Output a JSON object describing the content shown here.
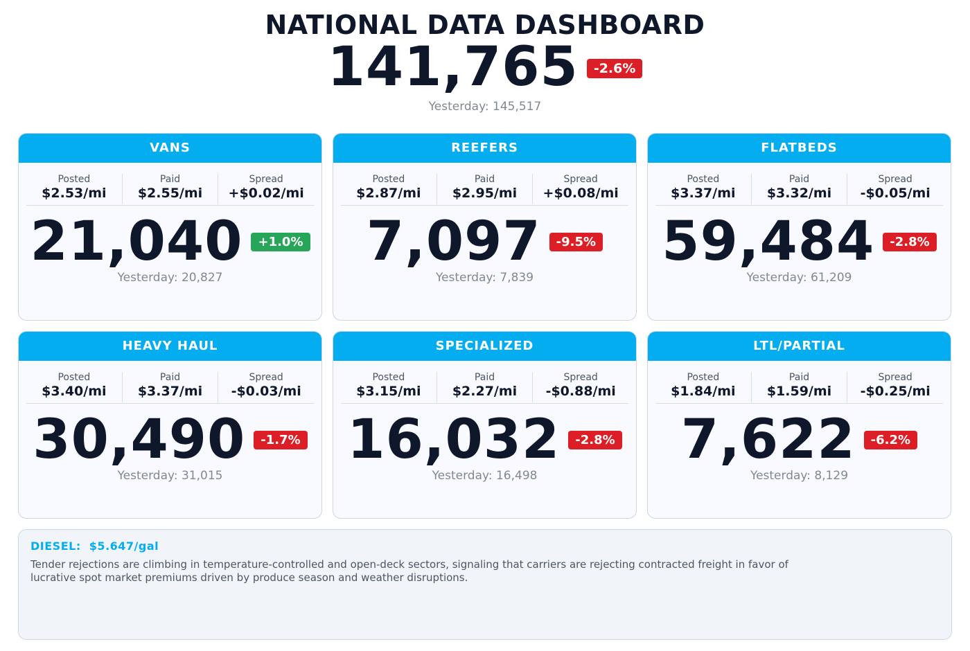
{
  "header": {
    "title": "NATIONAL DATA DASHBOARD",
    "total": "141,765",
    "change": "-2.6%",
    "change_direction": "down",
    "yesterday": "Yesterday: 145,517"
  },
  "colors": {
    "accent": "#03adef",
    "down": "#dc1f26",
    "up": "#27a558",
    "text": "#0f172a",
    "muted": "#808892"
  },
  "cards": [
    {
      "title": "VANS",
      "posted_label": "Posted",
      "posted": "$2.53/mi",
      "paid_label": "Paid",
      "paid": "$2.55/mi",
      "spread_label": "Spread",
      "spread": "+$0.02/mi",
      "count": "21,040",
      "change": "+1.0%",
      "change_direction": "up",
      "yesterday": "Yesterday: 20,827"
    },
    {
      "title": "REEFERS",
      "posted_label": "Posted",
      "posted": "$2.87/mi",
      "paid_label": "Paid",
      "paid": "$2.95/mi",
      "spread_label": "Spread",
      "spread": "+$0.08/mi",
      "count": "7,097",
      "change": "-9.5%",
      "change_direction": "down",
      "yesterday": "Yesterday: 7,839"
    },
    {
      "title": "FLATBEDS",
      "posted_label": "Posted",
      "posted": "$3.37/mi",
      "paid_label": "Paid",
      "paid": "$3.32/mi",
      "spread_label": "Spread",
      "spread": "-$0.05/mi",
      "count": "59,484",
      "change": "-2.8%",
      "change_direction": "down",
      "yesterday": "Yesterday: 61,209"
    },
    {
      "title": "HEAVY HAUL",
      "posted_label": "Posted",
      "posted": "$3.40/mi",
      "paid_label": "Paid",
      "paid": "$3.37/mi",
      "spread_label": "Spread",
      "spread": "-$0.03/mi",
      "count": "30,490",
      "change": "-1.7%",
      "change_direction": "down",
      "yesterday": "Yesterday: 31,015"
    },
    {
      "title": "SPECIALIZED",
      "posted_label": "Posted",
      "posted": "$3.15/mi",
      "paid_label": "Paid",
      "paid": "$2.27/mi",
      "spread_label": "Spread",
      "spread": "-$0.88/mi",
      "count": "16,032",
      "change": "-2.8%",
      "change_direction": "down",
      "yesterday": "Yesterday: 16,498"
    },
    {
      "title": "LTL/PARTIAL",
      "posted_label": "Posted",
      "posted": "$1.84/mi",
      "paid_label": "Paid",
      "paid": "$1.59/mi",
      "spread_label": "Spread",
      "spread": "-$0.25/mi",
      "count": "7,622",
      "change": "-6.2%",
      "change_direction": "down",
      "yesterday": "Yesterday: 8,129"
    }
  ],
  "footer": {
    "diesel_label": "DIESEL:",
    "diesel_value": "$5.647/gal",
    "note": "Tender rejections are climbing in temperature-controlled and open-deck sectors, signaling that carriers are rejecting contracted freight in favor of lucrative spot market premiums driven by produce season and weather disruptions."
  }
}
